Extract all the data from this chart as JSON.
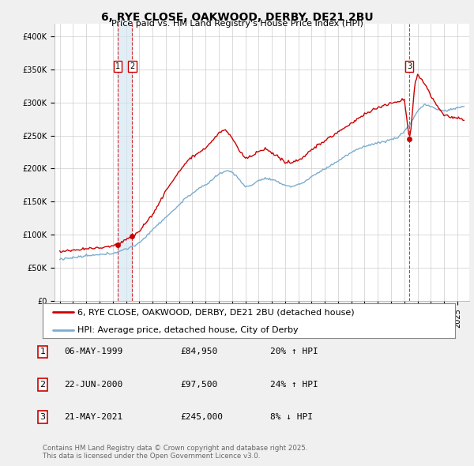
{
  "title": "6, RYE CLOSE, OAKWOOD, DERBY, DE21 2BU",
  "subtitle": "Price paid vs. HM Land Registry's House Price Index (HPI)",
  "legend_label_red": "6, RYE CLOSE, OAKWOOD, DERBY, DE21 2BU (detached house)",
  "legend_label_blue": "HPI: Average price, detached house, City of Derby",
  "footer": "Contains HM Land Registry data © Crown copyright and database right 2025.\nThis data is licensed under the Open Government Licence v3.0.",
  "transactions": [
    {
      "num": 1,
      "date": "06-MAY-1999",
      "price": "£84,950",
      "pct": "20% ↑ HPI",
      "year": 1999.35
    },
    {
      "num": 2,
      "date": "22-JUN-2000",
      "price": "£97,500",
      "pct": "24% ↑ HPI",
      "year": 2000.47
    },
    {
      "num": 3,
      "date": "21-MAY-2021",
      "price": "£245,000",
      "pct": "8% ↓ HPI",
      "year": 2021.38
    }
  ],
  "transaction_prices": [
    84950,
    97500,
    245000
  ],
  "ylim": [
    0,
    420000
  ],
  "yticks": [
    0,
    50000,
    100000,
    150000,
    200000,
    250000,
    300000,
    350000,
    400000
  ],
  "ytick_labels": [
    "£0",
    "£50K",
    "£100K",
    "£150K",
    "£200K",
    "£250K",
    "£300K",
    "£350K",
    "£400K"
  ],
  "red_color": "#cc0000",
  "blue_color": "#7aadce",
  "shade_color": "#d0e4f0",
  "bg_color": "#f0f0f0",
  "plot_bg": "#ffffff",
  "grid_color": "#cccccc",
  "title_fontsize": 10,
  "subtitle_fontsize": 8,
  "tick_fontsize": 7,
  "legend_fontsize": 8
}
